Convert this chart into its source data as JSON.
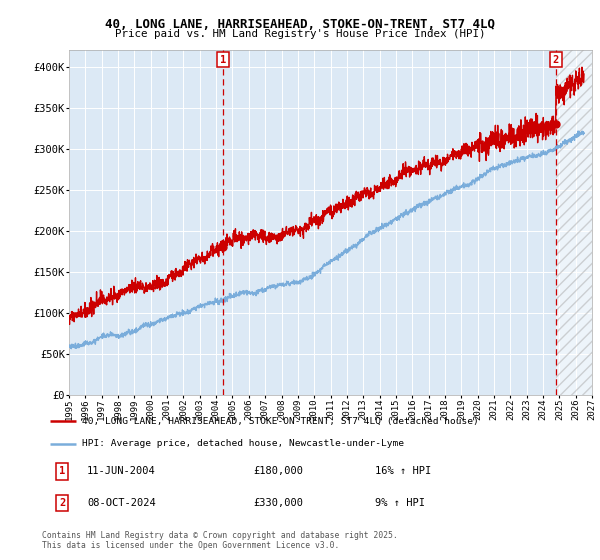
{
  "title_line1": "40, LONG LANE, HARRISEAHEAD, STOKE-ON-TRENT, ST7 4LQ",
  "title_line2": "Price paid vs. HM Land Registry's House Price Index (HPI)",
  "xmin": 1995,
  "xmax": 2027,
  "ymin": 0,
  "ymax": 420000,
  "yticks": [
    0,
    50000,
    100000,
    150000,
    200000,
    250000,
    300000,
    350000,
    400000
  ],
  "ytick_labels": [
    "£0",
    "£50K",
    "£100K",
    "£150K",
    "£200K",
    "£250K",
    "£300K",
    "£350K",
    "£400K"
  ],
  "red_color": "#cc0000",
  "blue_color": "#7aaddb",
  "bg_plot_color": "#dce9f5",
  "bg_fig_color": "#ffffff",
  "grid_color": "#ffffff",
  "dashed_line_color": "#cc0000",
  "marker1_year": 2004.44,
  "marker1_value": 180000,
  "marker2_year": 2024.77,
  "marker2_value": 330000,
  "legend_line1": "40, LONG LANE, HARRISEAHEAD, STOKE-ON-TRENT, ST7 4LQ (detached house)",
  "legend_line2": "HPI: Average price, detached house, Newcastle-under-Lyme",
  "annotation1_date_str": "11-JUN-2004",
  "annotation1_price": "£180,000",
  "annotation1_hpi": "16% ↑ HPI",
  "annotation2_date_str": "08-OCT-2024",
  "annotation2_price": "£330,000",
  "annotation2_hpi": "9% ↑ HPI",
  "footer": "Contains HM Land Registry data © Crown copyright and database right 2025.\nThis data is licensed under the Open Government Licence v3.0."
}
